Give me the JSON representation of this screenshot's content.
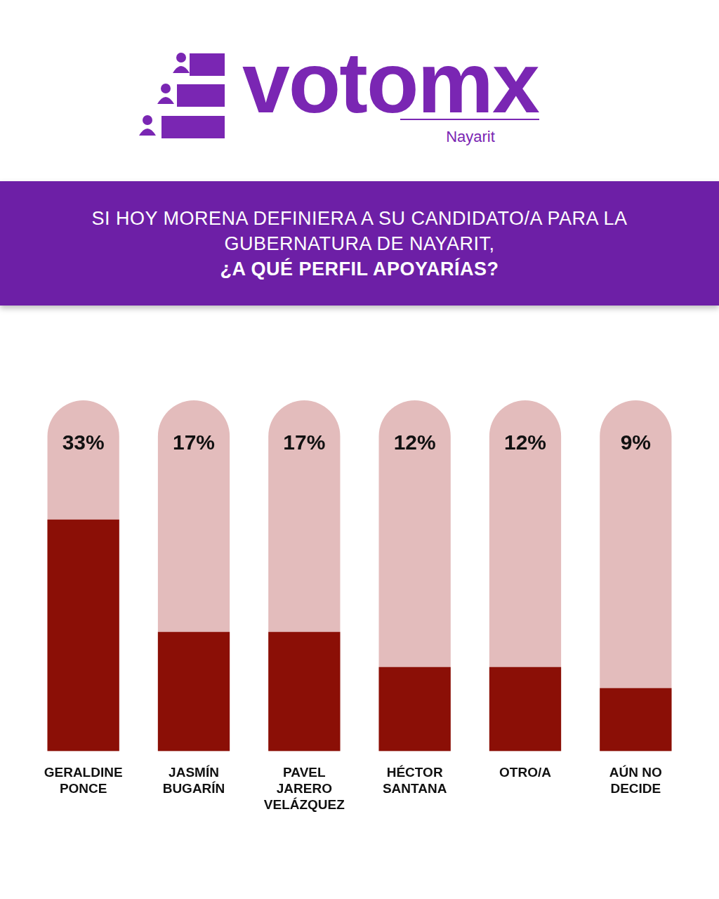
{
  "header": {
    "logo": "votomx",
    "region": "Nayarit"
  },
  "chart_data": {
    "type": "bar",
    "title": "SI HOY MORENA DEFINIERA A SU CANDIDATO/A PARA LA GUBERNATURA DE NAYARIT,",
    "subtitle": "¿A QUÉ PERFIL APOYARÍAS?",
    "categories": [
      "GERALDINE PONCE",
      "JASMÍN BUGARÍN",
      "PAVEL JARERO VELÁZQUEZ",
      "HÉCTOR SANTANA",
      "OTRO/A",
      "AÚN NO DECIDE"
    ],
    "values": [
      33,
      17,
      17,
      12,
      12,
      9
    ],
    "value_labels": [
      "33%",
      "17%",
      "17%",
      "12%",
      "12%",
      "9%"
    ],
    "data_labels": true,
    "color": "#8b0f06",
    "ylim": [
      0,
      50
    ],
    "grid": false,
    "tick_labels": "x"
  }
}
